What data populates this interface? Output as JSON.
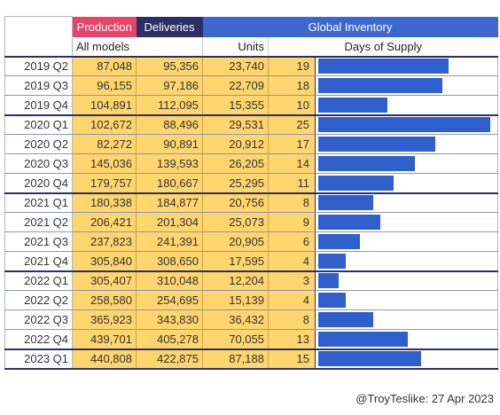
{
  "header": {
    "production": "Production",
    "deliveries": "Deliveries",
    "global_inventory": "Global Inventory",
    "all_models": "All models",
    "units": "Units",
    "days_of_supply": "Days of Supply"
  },
  "credit": "@TroyTeslike: 27 Apr 2023",
  "colors": {
    "production_header": "#e8446a",
    "deliveries_header": "#2b2f66",
    "inventory_header": "#3a68cc",
    "data_cells": "#ffd56e",
    "bar": "#2f5fcc"
  },
  "chart_data": {
    "type": "table",
    "columns": [
      "Production",
      "Deliveries",
      "Units",
      "Days of Supply"
    ],
    "bar_column": "Days of Supply",
    "bar_max": 25,
    "rows": [
      {
        "quarter": "2019 Q2",
        "production": "87,048",
        "deliveries": "95,356",
        "units": "23,740",
        "days": 19
      },
      {
        "quarter": "2019 Q3",
        "production": "96,155",
        "deliveries": "97,186",
        "units": "22,709",
        "days": 18
      },
      {
        "quarter": "2019 Q4",
        "production": "104,891",
        "deliveries": "112,095",
        "units": "15,355",
        "days": 10
      },
      {
        "quarter": "2020 Q1",
        "production": "102,672",
        "deliveries": "88,496",
        "units": "29,531",
        "days": 25
      },
      {
        "quarter": "2020 Q2",
        "production": "82,272",
        "deliveries": "90,891",
        "units": "20,912",
        "days": 17
      },
      {
        "quarter": "2020 Q3",
        "production": "145,036",
        "deliveries": "139,593",
        "units": "26,205",
        "days": 14
      },
      {
        "quarter": "2020 Q4",
        "production": "179,757",
        "deliveries": "180,667",
        "units": "25,295",
        "days": 11
      },
      {
        "quarter": "2021 Q1",
        "production": "180,338",
        "deliveries": "184,877",
        "units": "20,756",
        "days": 8
      },
      {
        "quarter": "2021 Q2",
        "production": "206,421",
        "deliveries": "201,304",
        "units": "25,073",
        "days": 9
      },
      {
        "quarter": "2021 Q3",
        "production": "237,823",
        "deliveries": "241,391",
        "units": "20,905",
        "days": 6
      },
      {
        "quarter": "2021 Q4",
        "production": "305,840",
        "deliveries": "308,650",
        "units": "17,595",
        "days": 4
      },
      {
        "quarter": "2022 Q1",
        "production": "305,407",
        "deliveries": "310,048",
        "units": "12,204",
        "days": 3
      },
      {
        "quarter": "2022 Q2",
        "production": "258,580",
        "deliveries": "254,695",
        "units": "15,139",
        "days": 4
      },
      {
        "quarter": "2022 Q3",
        "production": "365,923",
        "deliveries": "343,830",
        "units": "36,432",
        "days": 8
      },
      {
        "quarter": "2022 Q4",
        "production": "439,701",
        "deliveries": "405,278",
        "units": "70,055",
        "days": 13
      },
      {
        "quarter": "2023 Q1",
        "production": "440,808",
        "deliveries": "422,875",
        "units": "87,188",
        "days": 15
      }
    ]
  }
}
